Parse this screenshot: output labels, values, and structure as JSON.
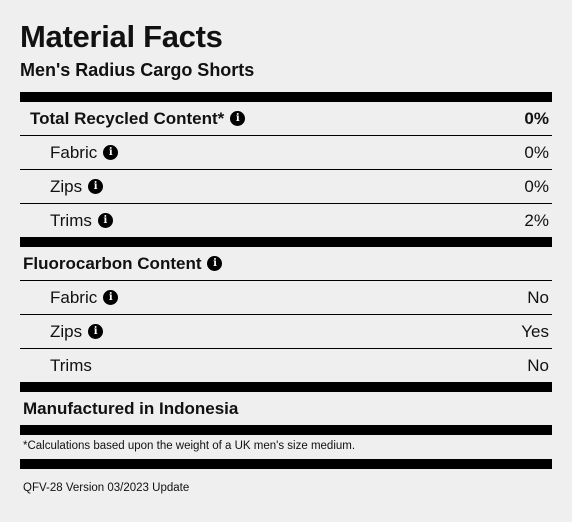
{
  "header": {
    "title": "Material Facts",
    "product": "Men's Radius Cargo Shorts"
  },
  "recycled": {
    "label": "Total Recycled Content*",
    "value": "0%",
    "items": [
      {
        "label": "Fabric",
        "value": "0%"
      },
      {
        "label": "Zips",
        "value": "0%"
      },
      {
        "label": "Trims",
        "value": "2%"
      }
    ]
  },
  "fluorocarbon": {
    "label": "Fluorocarbon Content",
    "items": [
      {
        "label": "Fabric",
        "value": "No"
      },
      {
        "label": "Zips",
        "value": "Yes"
      },
      {
        "label": "Trims",
        "value": "No"
      }
    ]
  },
  "manufactured": "Manufactured in Indonesia",
  "footnote": "*Calculations based upon the weight of a UK men's size medium.",
  "version": "QFV-28 Version 03/2023 Update",
  "icons": {
    "info": "info-icon"
  },
  "colors": {
    "background": "#efefef",
    "ink": "#000000"
  }
}
